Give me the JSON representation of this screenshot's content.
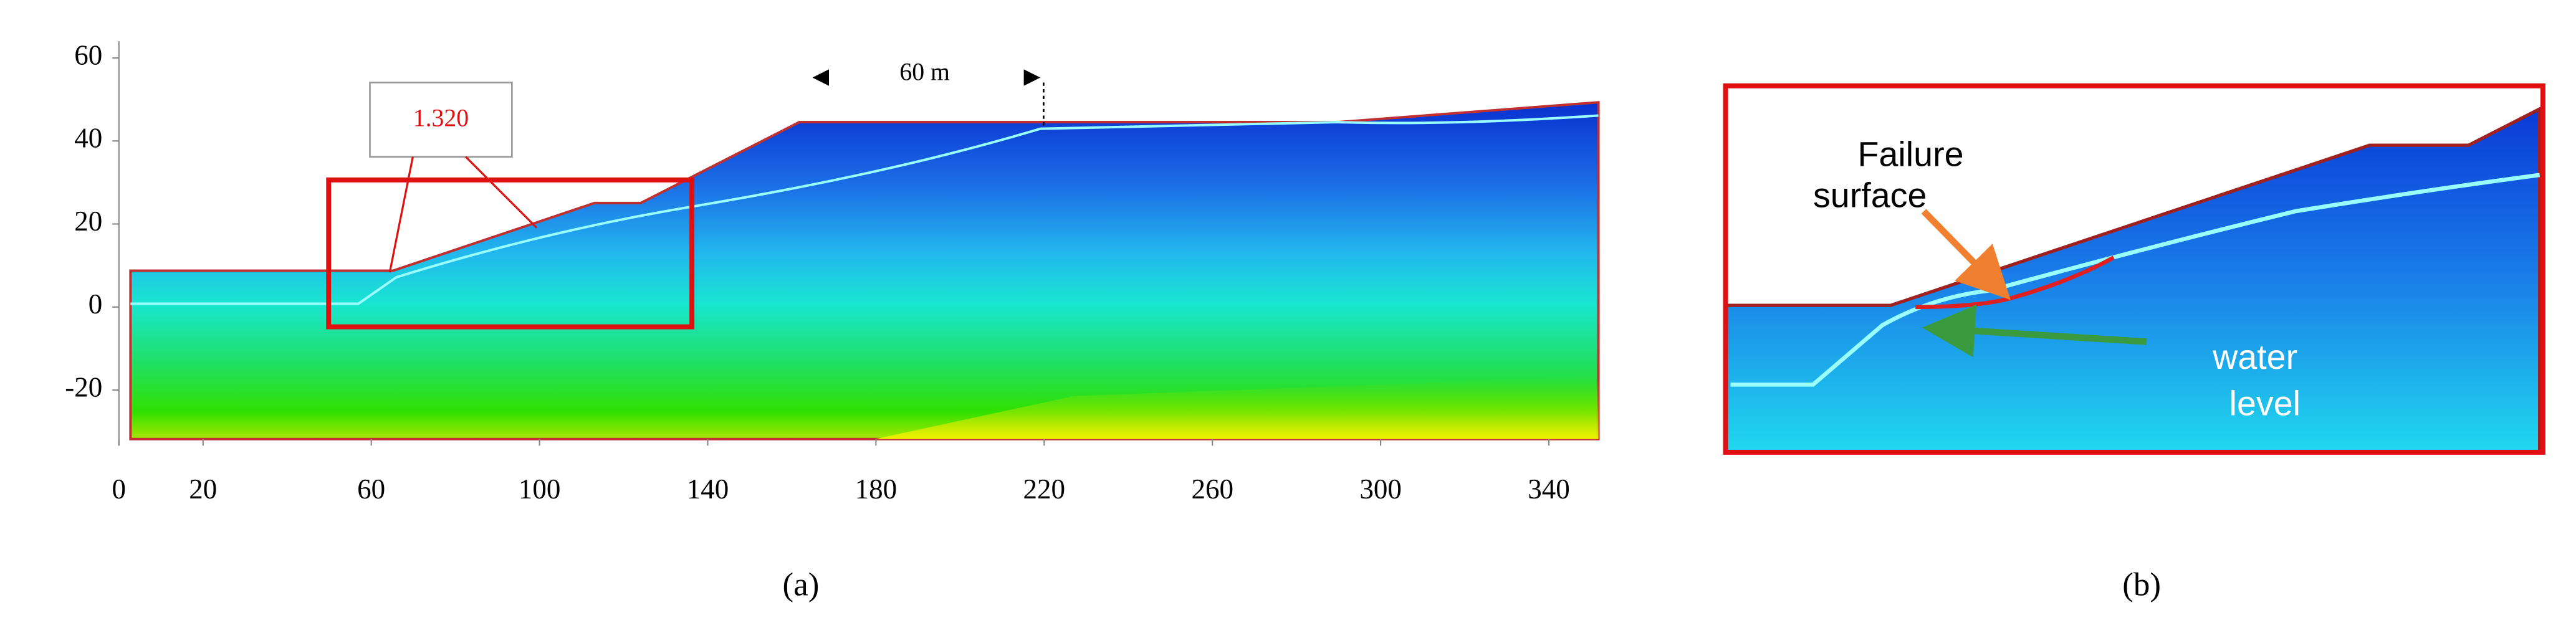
{
  "panel_a": {
    "xticks": [
      0,
      20,
      60,
      100,
      140,
      180,
      220,
      260,
      300,
      340
    ],
    "yticks": [
      60,
      40,
      20,
      0,
      -20
    ],
    "factor_of_safety": "1.320",
    "distance_label": "60 m",
    "caption": "(a)"
  },
  "panel_b": {
    "failure_label": [
      "Failure",
      "surface"
    ],
    "water_label": [
      "water",
      "level"
    ],
    "caption": "(b)"
  }
}
